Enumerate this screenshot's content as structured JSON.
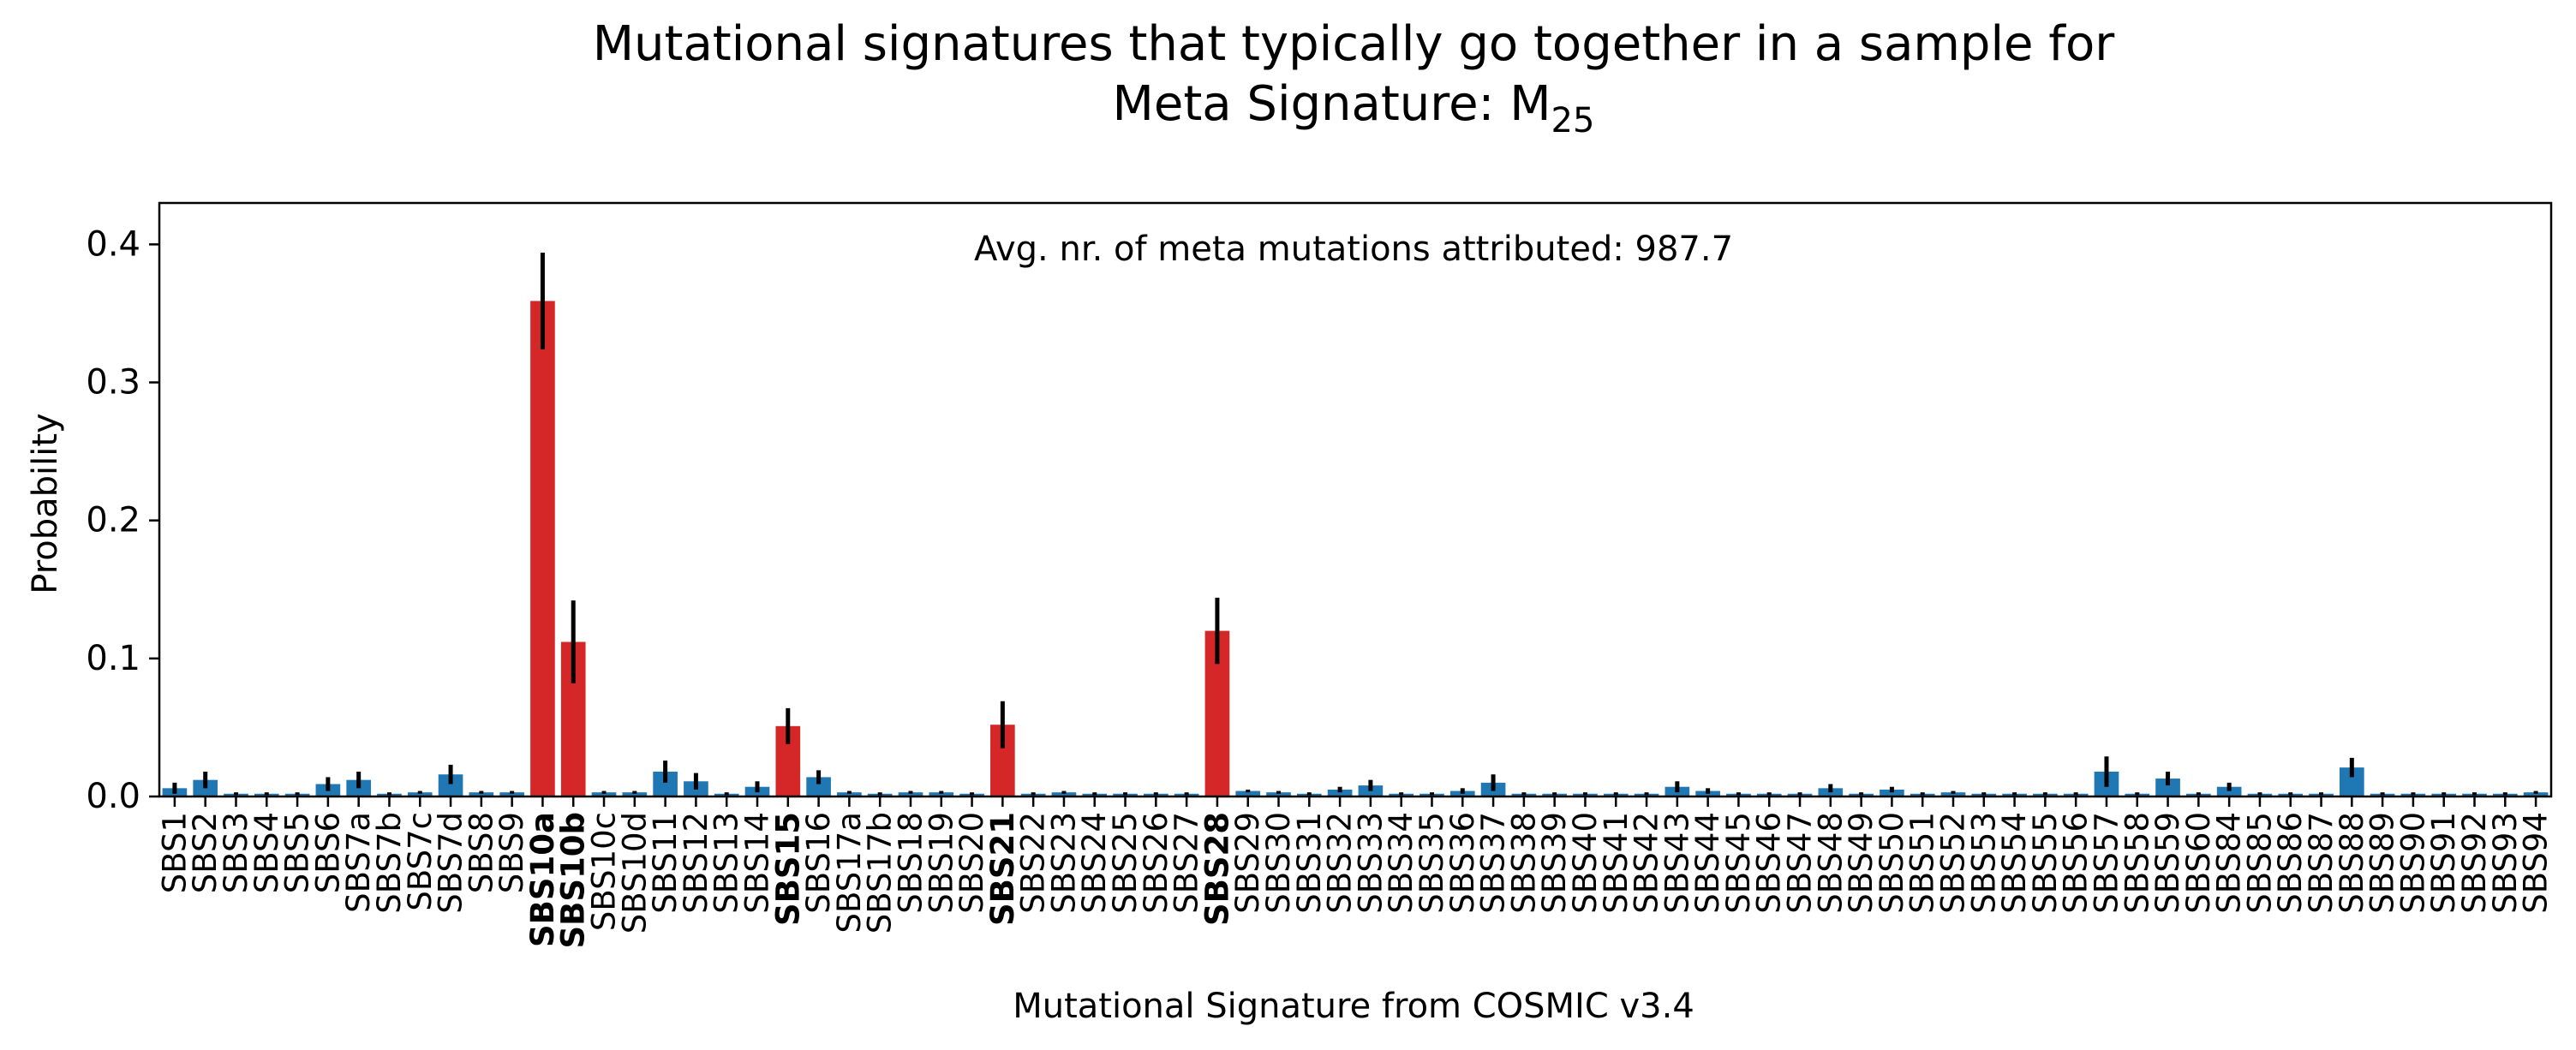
{
  "chart_data": {
    "type": "bar",
    "title_line1": "Mutational signatures that typically go together in a sample for",
    "title_line2_prefix": "Meta Signature: M",
    "title_line2_subscript": "25",
    "annotation": "Avg. nr. of meta mutations attributed: 987.7",
    "xlabel": "Mutational Signature from COSMIC v3.4",
    "ylabel": "Probability",
    "ylim": [
      0,
      0.43
    ],
    "yticks": [
      0.0,
      0.1,
      0.2,
      0.3,
      0.4
    ],
    "ytick_labels": [
      "0.0",
      "0.1",
      "0.2",
      "0.3",
      "0.4"
    ],
    "colors": {
      "default": "#1f77b4",
      "highlight": "#d62728",
      "errorbar": "#000000"
    },
    "categories": [
      "SBS1",
      "SBS2",
      "SBS3",
      "SBS4",
      "SBS5",
      "SBS6",
      "SBS7a",
      "SBS7b",
      "SBS7c",
      "SBS7d",
      "SBS8",
      "SBS9",
      "SBS10a",
      "SBS10b",
      "SBS10c",
      "SBS10d",
      "SBS11",
      "SBS12",
      "SBS13",
      "SBS14",
      "SBS15",
      "SBS16",
      "SBS17a",
      "SBS17b",
      "SBS18",
      "SBS19",
      "SBS20",
      "SBS21",
      "SBS22",
      "SBS23",
      "SBS24",
      "SBS25",
      "SBS26",
      "SBS27",
      "SBS28",
      "SBS29",
      "SBS30",
      "SBS31",
      "SBS32",
      "SBS33",
      "SBS34",
      "SBS35",
      "SBS36",
      "SBS37",
      "SBS38",
      "SBS39",
      "SBS40",
      "SBS41",
      "SBS42",
      "SBS43",
      "SBS44",
      "SBS45",
      "SBS46",
      "SBS47",
      "SBS48",
      "SBS49",
      "SBS50",
      "SBS51",
      "SBS52",
      "SBS53",
      "SBS54",
      "SBS55",
      "SBS56",
      "SBS57",
      "SBS58",
      "SBS59",
      "SBS60",
      "SBS84",
      "SBS85",
      "SBS86",
      "SBS87",
      "SBS88",
      "SBS89",
      "SBS90",
      "SBS91",
      "SBS92",
      "SBS93",
      "SBS94"
    ],
    "values": [
      0.006,
      0.012,
      0.002,
      0.002,
      0.002,
      0.009,
      0.012,
      0.002,
      0.003,
      0.016,
      0.003,
      0.003,
      0.359,
      0.112,
      0.003,
      0.003,
      0.018,
      0.011,
      0.002,
      0.007,
      0.051,
      0.014,
      0.003,
      0.002,
      0.003,
      0.003,
      0.002,
      0.052,
      0.002,
      0.003,
      0.002,
      0.002,
      0.002,
      0.002,
      0.12,
      0.004,
      0.003,
      0.002,
      0.005,
      0.008,
      0.002,
      0.002,
      0.004,
      0.01,
      0.002,
      0.002,
      0.002,
      0.002,
      0.002,
      0.007,
      0.004,
      0.002,
      0.002,
      0.002,
      0.006,
      0.002,
      0.005,
      0.002,
      0.003,
      0.002,
      0.002,
      0.002,
      0.002,
      0.018,
      0.002,
      0.013,
      0.002,
      0.007,
      0.002,
      0.002,
      0.002,
      0.021,
      0.002,
      0.002,
      0.002,
      0.002,
      0.002,
      0.003
    ],
    "errors": [
      0.004,
      0.006,
      0.001,
      0.001,
      0.001,
      0.005,
      0.006,
      0.001,
      0.001,
      0.007,
      0.001,
      0.001,
      0.035,
      0.03,
      0.001,
      0.001,
      0.008,
      0.006,
      0.001,
      0.004,
      0.013,
      0.005,
      0.001,
      0.001,
      0.001,
      0.001,
      0.001,
      0.017,
      0.001,
      0.001,
      0.001,
      0.001,
      0.001,
      0.001,
      0.024,
      0.001,
      0.001,
      0.001,
      0.002,
      0.004,
      0.001,
      0.001,
      0.002,
      0.006,
      0.001,
      0.001,
      0.001,
      0.001,
      0.001,
      0.004,
      0.002,
      0.001,
      0.001,
      0.001,
      0.003,
      0.001,
      0.002,
      0.001,
      0.001,
      0.001,
      0.001,
      0.001,
      0.001,
      0.011,
      0.001,
      0.005,
      0.001,
      0.003,
      0.001,
      0.001,
      0.001,
      0.007,
      0.001,
      0.001,
      0.001,
      0.001,
      0.001,
      0.001
    ],
    "highlighted": [
      "SBS10a",
      "SBS10b",
      "SBS15",
      "SBS21",
      "SBS28"
    ],
    "grid": false
  }
}
